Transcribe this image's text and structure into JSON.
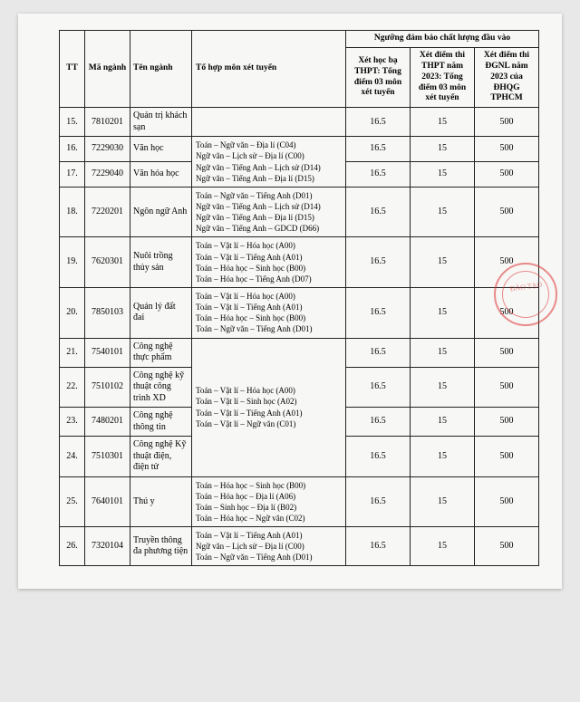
{
  "headers": {
    "tt": "TT",
    "ma": "Mã ngành",
    "ten": "Tên ngành",
    "tohop": "Tổ hợp môn xét tuyển",
    "group": "Ngưỡng đảm bảo chất lượng đầu vào",
    "s1": "Xét học bạ THPT: Tổng điểm 03 môn xét tuyển",
    "s2": "Xét điểm thi THPT năm 2023: Tổng điểm 03 môn xét tuyển",
    "s3": "Xét điểm thi ĐGNL năm 2023 của ĐHQG TPHCM"
  },
  "rows": [
    {
      "tt": "15.",
      "ma": "7810201",
      "ten": "Quản trị khách sạn",
      "combos": "",
      "s1": "16.5",
      "s2": "15",
      "s3": "500"
    },
    {
      "tt": "16.",
      "ma": "7229030",
      "ten": "Văn học",
      "combos": "Toán – Ngữ văn – Địa lí (C04)\nNgữ văn – Lịch sử – Địa lí (C00)\nNgữ văn – Tiếng Anh – Lịch sử (D14)\nNgữ văn – Tiếng Anh – Địa lí (D15)",
      "s1": "16.5",
      "s2": "15",
      "s3": "500",
      "span": 2
    },
    {
      "tt": "17.",
      "ma": "7229040",
      "ten": "Văn hóa học",
      "s1": "16.5",
      "s2": "15",
      "s3": "500"
    },
    {
      "tt": "18.",
      "ma": "7220201",
      "ten": "Ngôn ngữ Anh",
      "combos": "Toán – Ngữ văn – Tiếng Anh (D01)\nNgữ văn – Tiếng Anh – Lịch sử (D14)\nNgữ văn – Tiếng Anh – Địa lí (D15)\nNgữ văn – Tiếng Anh – GDCD (D66)",
      "s1": "16.5",
      "s2": "15",
      "s3": "500"
    },
    {
      "tt": "19.",
      "ma": "7620301",
      "ten": "Nuôi trồng thủy sản",
      "combos": "Toán – Vật lí – Hóa học (A00)\nToán – Vật lí – Tiếng Anh (A01)\nToán – Hóa học – Sinh học (B00)\nToán – Hóa học – Tiếng Anh (D07)",
      "s1": "16.5",
      "s2": "15",
      "s3": "500"
    },
    {
      "tt": "20.",
      "ma": "7850103",
      "ten": "Quản lý đất đai",
      "combos": "Toán – Vật lí – Hóa học (A00)\nToán – Vật lí – Tiếng Anh (A01)\nToán – Hóa học – Sinh học (B00)\nToán – Ngữ văn – Tiếng Anh (D01)",
      "s1": "16.5",
      "s2": "15",
      "s3": "500"
    },
    {
      "tt": "21.",
      "ma": "7540101",
      "ten": "Công nghệ thực phẩm",
      "combos": "Toán – Vật lí – Hóa học (A00)\nToán – Vật lí – Sinh học (A02)\nToán – Vật lí – Tiếng Anh (A01)\nToán – Vật lí – Ngữ văn (C01)",
      "s1": "16.5",
      "s2": "15",
      "s3": "500",
      "span": 4
    },
    {
      "tt": "22.",
      "ma": "7510102",
      "ten": "Công nghệ kỹ thuật công trình XD",
      "s1": "16.5",
      "s2": "15",
      "s3": "500"
    },
    {
      "tt": "23.",
      "ma": "7480201",
      "ten": "Công nghệ thông tin",
      "s1": "16.5",
      "s2": "15",
      "s3": "500"
    },
    {
      "tt": "24.",
      "ma": "7510301",
      "ten": "Công nghệ Kỹ thuật điện, điện tử",
      "s1": "16.5",
      "s2": "15",
      "s3": "500"
    },
    {
      "tt": "25.",
      "ma": "7640101",
      "ten": "Thú y",
      "combos": "Toán – Hóa học – Sinh học (B00)\nToán – Hóa học – Địa lí (A06)\nToán – Sinh học – Địa lí (B02)\nToán – Hóa học – Ngữ văn (C02)",
      "s1": "16.5",
      "s2": "15",
      "s3": "500"
    },
    {
      "tt": "26.",
      "ma": "7320104",
      "ten": "Truyền thông đa phương tiện",
      "combos": "Toán – Vật lí – Tiếng Anh (A01)\nNgữ văn – Lịch sử – Địa lí (C00)\nToán – Ngữ văn – Tiếng Anh (D01)",
      "s1": "16.5",
      "s2": "15",
      "s3": "500"
    }
  ],
  "stamp_text": "ĐÀO TẠO"
}
